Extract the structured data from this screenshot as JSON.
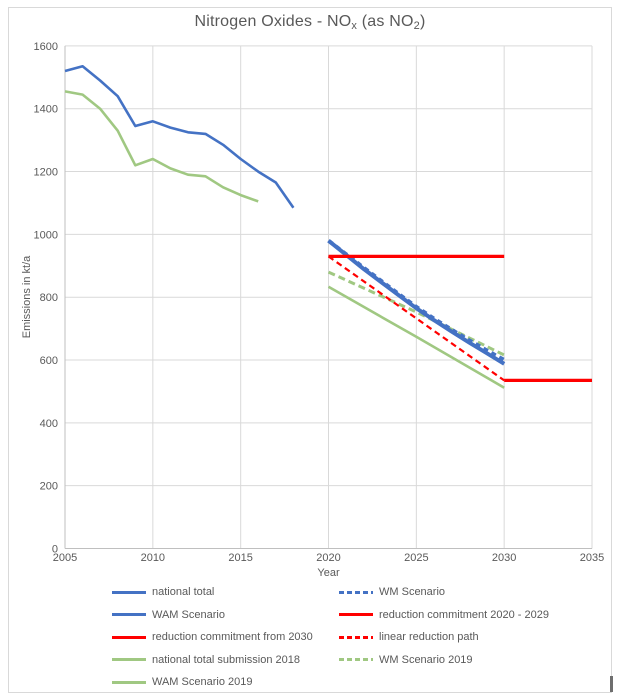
{
  "chart_data": {
    "type": "line",
    "title": "Nitrogen Oxides - NOx (as NO2)",
    "title_parts": [
      {
        "text": "Nitrogen Oxides - NO",
        "sub": false
      },
      {
        "text": "x",
        "sub": true
      },
      {
        "text": " (as NO",
        "sub": false
      },
      {
        "text": "2",
        "sub": true
      },
      {
        "text": ")",
        "sub": false
      }
    ],
    "xlabel": "Year",
    "ylabel": "Emissions in kt/a",
    "xlim": [
      2005,
      2035
    ],
    "ylim": [
      0,
      1600
    ],
    "x_ticks": [
      2005,
      2010,
      2015,
      2020,
      2025,
      2030,
      2035
    ],
    "y_ticks": [
      0,
      200,
      400,
      600,
      800,
      1000,
      1200,
      1400,
      1600
    ],
    "grid": true,
    "colors": {
      "blue": "#4472C4",
      "green": "#A0C882",
      "red": "#FF0000",
      "gridline": "#D9D9D9",
      "axis": "#BFBFBF",
      "text": "#595959"
    },
    "legend": {
      "position": "bottom",
      "columns": 2,
      "entries": [
        "national total",
        "WM Scenario",
        "WAM Scenario",
        "reduction commitment 2020 - 2029",
        "reduction commitment from 2030",
        "linear reduction path",
        "national total submission 2018",
        "WM Scenario 2019",
        "WAM Scenario 2019"
      ]
    },
    "series": [
      {
        "name": "national total",
        "color": "#4472C4",
        "style": "solid",
        "width": 2.6,
        "points": [
          [
            2005,
            1520
          ],
          [
            2006,
            1535
          ],
          [
            2007,
            1490
          ],
          [
            2008,
            1440
          ],
          [
            2009,
            1345
          ],
          [
            2010,
            1360
          ],
          [
            2011,
            1340
          ],
          [
            2012,
            1325
          ],
          [
            2013,
            1320
          ],
          [
            2014,
            1285
          ],
          [
            2015,
            1240
          ],
          [
            2016,
            1200
          ],
          [
            2017,
            1165
          ],
          [
            2018,
            1085
          ]
        ]
      },
      {
        "name": "WM Scenario",
        "color": "#4472C4",
        "style": "dashed",
        "width": 4,
        "dasharray": "5,4",
        "points": [
          [
            2020,
            980
          ],
          [
            2021,
            937
          ],
          [
            2022,
            894
          ],
          [
            2023,
            852
          ],
          [
            2024,
            810
          ],
          [
            2025,
            769
          ],
          [
            2026,
            732
          ],
          [
            2027,
            697
          ],
          [
            2028,
            663
          ],
          [
            2029,
            631
          ],
          [
            2030,
            600
          ]
        ]
      },
      {
        "name": "WAM Scenario",
        "color": "#4472C4",
        "style": "solid",
        "width": 4,
        "points": [
          [
            2020,
            980
          ],
          [
            2021,
            935
          ],
          [
            2022,
            890
          ],
          [
            2023,
            848
          ],
          [
            2024,
            806
          ],
          [
            2025,
            765
          ],
          [
            2026,
            727
          ],
          [
            2027,
            691
          ],
          [
            2028,
            656
          ],
          [
            2029,
            622
          ],
          [
            2030,
            588
          ]
        ]
      },
      {
        "name": "reduction commitment 2020 - 2029",
        "color": "#FF0000",
        "style": "solid",
        "width": 3.2,
        "points": [
          [
            2020,
            930
          ],
          [
            2030,
            930
          ]
        ]
      },
      {
        "name": "reduction commitment from 2030",
        "color": "#FF0000",
        "style": "solid",
        "width": 3.2,
        "points": [
          [
            2030,
            535
          ],
          [
            2035,
            535
          ]
        ]
      },
      {
        "name": "linear reduction path",
        "color": "#FF0000",
        "style": "dashed",
        "width": 2.2,
        "dasharray": "6,4",
        "points": [
          [
            2020,
            930
          ],
          [
            2030,
            535
          ]
        ]
      },
      {
        "name": "national total submission 2018",
        "color": "#A0C882",
        "style": "solid",
        "width": 2.6,
        "points": [
          [
            2005,
            1455
          ],
          [
            2006,
            1445
          ],
          [
            2007,
            1400
          ],
          [
            2008,
            1330
          ],
          [
            2009,
            1220
          ],
          [
            2010,
            1240
          ],
          [
            2011,
            1210
          ],
          [
            2012,
            1190
          ],
          [
            2013,
            1185
          ],
          [
            2014,
            1150
          ],
          [
            2015,
            1125
          ],
          [
            2016,
            1105
          ]
        ]
      },
      {
        "name": "WM Scenario 2019",
        "color": "#A0C882",
        "style": "dashed",
        "width": 3,
        "dasharray": "7,4",
        "points": [
          [
            2020,
            880
          ],
          [
            2025,
            753
          ],
          [
            2030,
            616
          ]
        ]
      },
      {
        "name": "WAM Scenario 2019",
        "color": "#A0C882",
        "style": "solid",
        "width": 2.6,
        "points": [
          [
            2020,
            833
          ],
          [
            2025,
            674
          ],
          [
            2030,
            512
          ]
        ]
      }
    ]
  }
}
